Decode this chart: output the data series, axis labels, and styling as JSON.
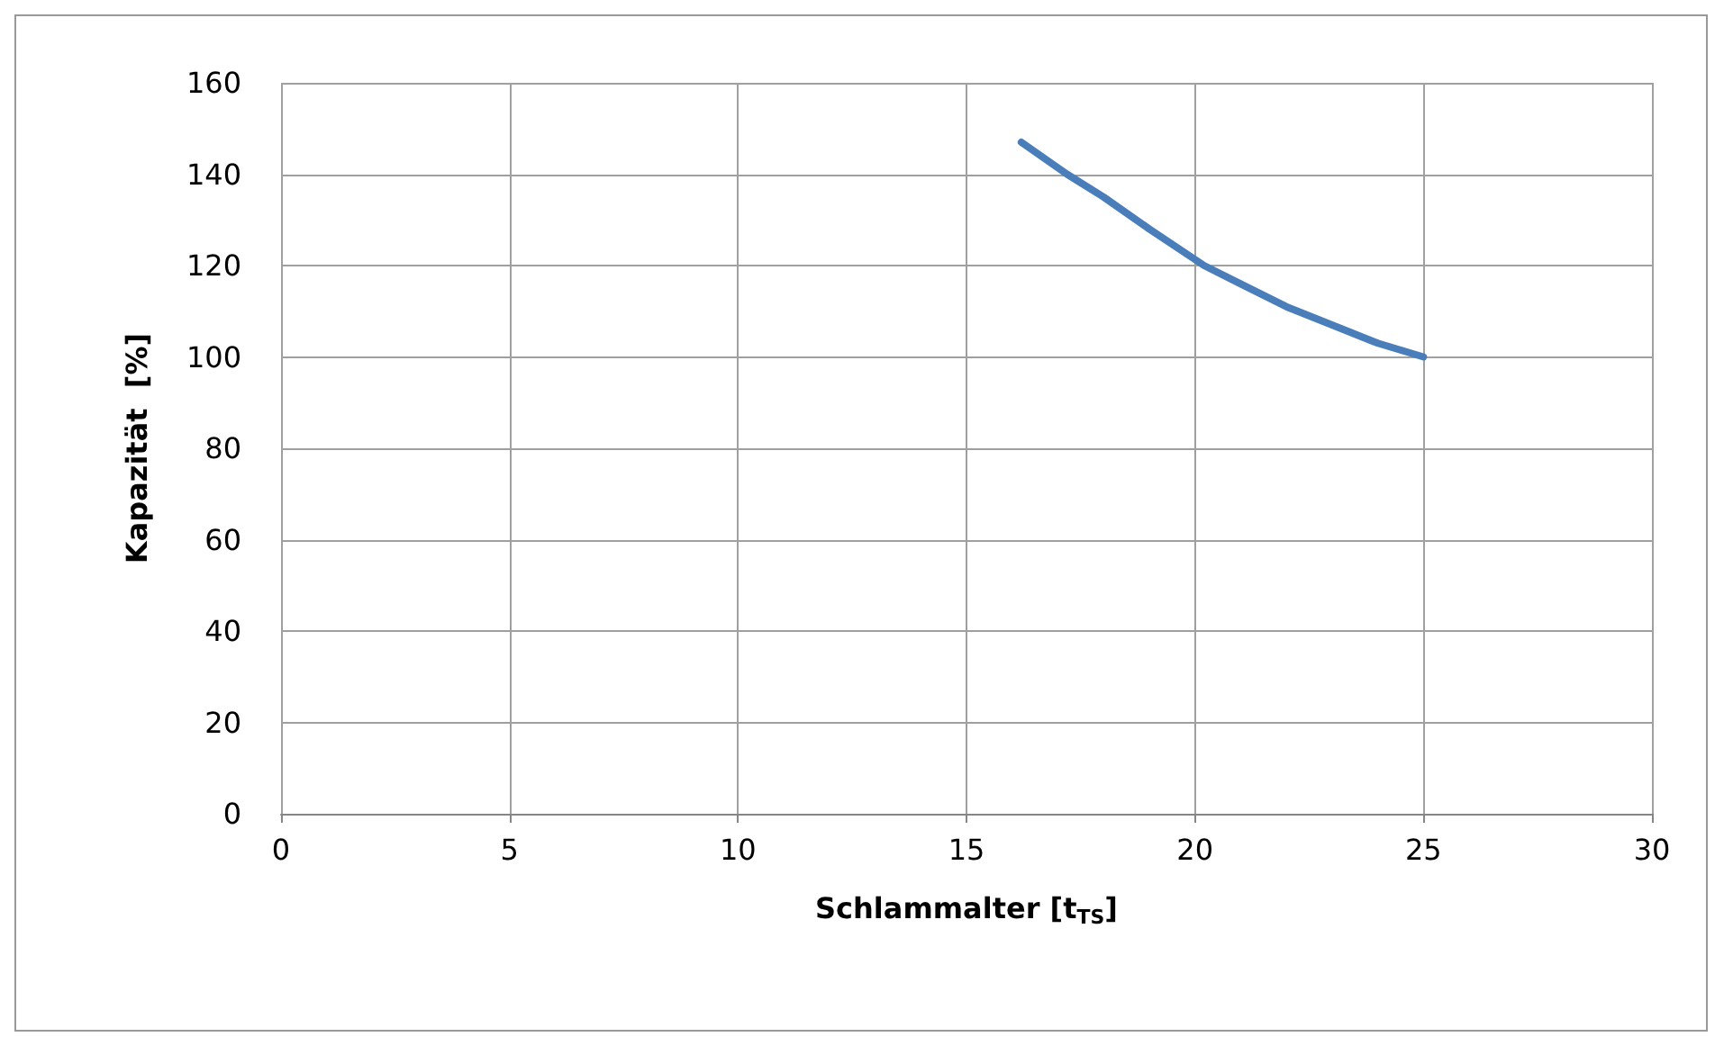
{
  "chart_data": {
    "type": "line",
    "xlabel": "Schlammalter [t$_{TS}$]",
    "ylabel": "Kapazität  [%]",
    "xlim": [
      0,
      30
    ],
    "xticks": [
      0,
      5,
      10,
      15,
      20,
      25,
      30
    ],
    "ylim": [
      0,
      160
    ],
    "yticks": [
      0,
      20,
      40,
      60,
      80,
      100,
      120,
      140,
      160
    ],
    "grid": true,
    "marker": "none",
    "line_style": "solid",
    "series": [
      {
        "color": "#4a7ebb",
        "x": [
          16.2,
          17.2,
          18,
          19,
          20.2,
          21,
          22,
          23,
          24,
          25
        ],
        "values": [
          147,
          140,
          135,
          128,
          120,
          116,
          111,
          107,
          103,
          100
        ]
      }
    ]
  }
}
